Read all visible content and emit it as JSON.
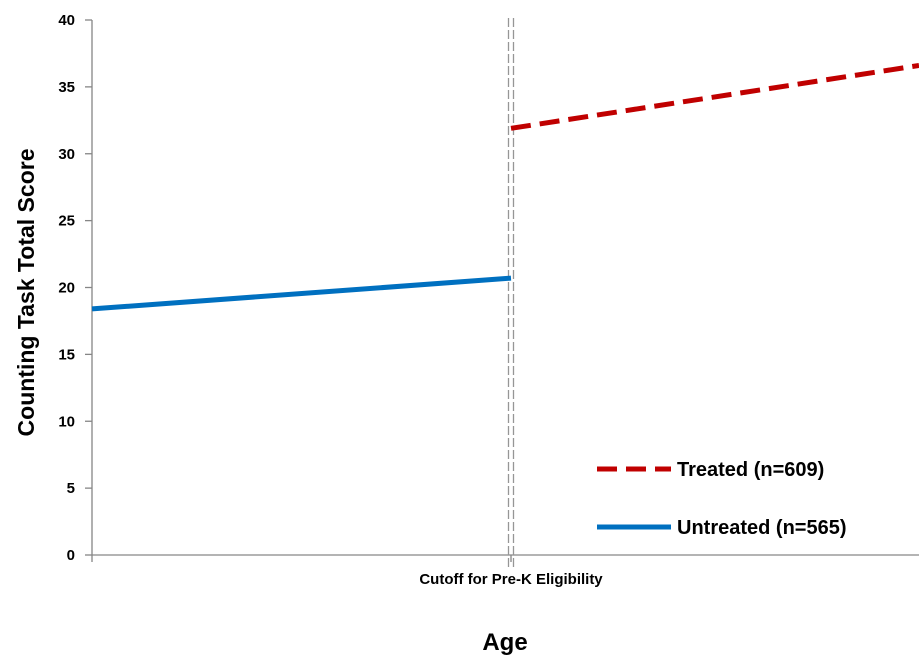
{
  "chart_data": {
    "type": "line",
    "ylabel": "Counting Task Total Score",
    "xlabel": "Age",
    "ylim": [
      0,
      40
    ],
    "yticks": [
      "0",
      "5",
      "10",
      "15",
      "20",
      "25",
      "30",
      "35",
      "40"
    ],
    "cutoff_label": "Cutoff for Pre-K Eligibility",
    "xlim": [
      -1,
      1
    ],
    "cutoff_x": 0,
    "grid": false,
    "legend_position": "bottom-right",
    "series": [
      {
        "name": "Treated (n=609)",
        "line_style": "dashed",
        "color": "#C00000",
        "x": [
          0,
          1
        ],
        "y": [
          31.9,
          36.6
        ]
      },
      {
        "name": "Untreated (n=565)",
        "line_style": "solid",
        "color": "#0070C0",
        "x": [
          -1,
          0
        ],
        "y": [
          18.4,
          20.7
        ]
      }
    ]
  }
}
